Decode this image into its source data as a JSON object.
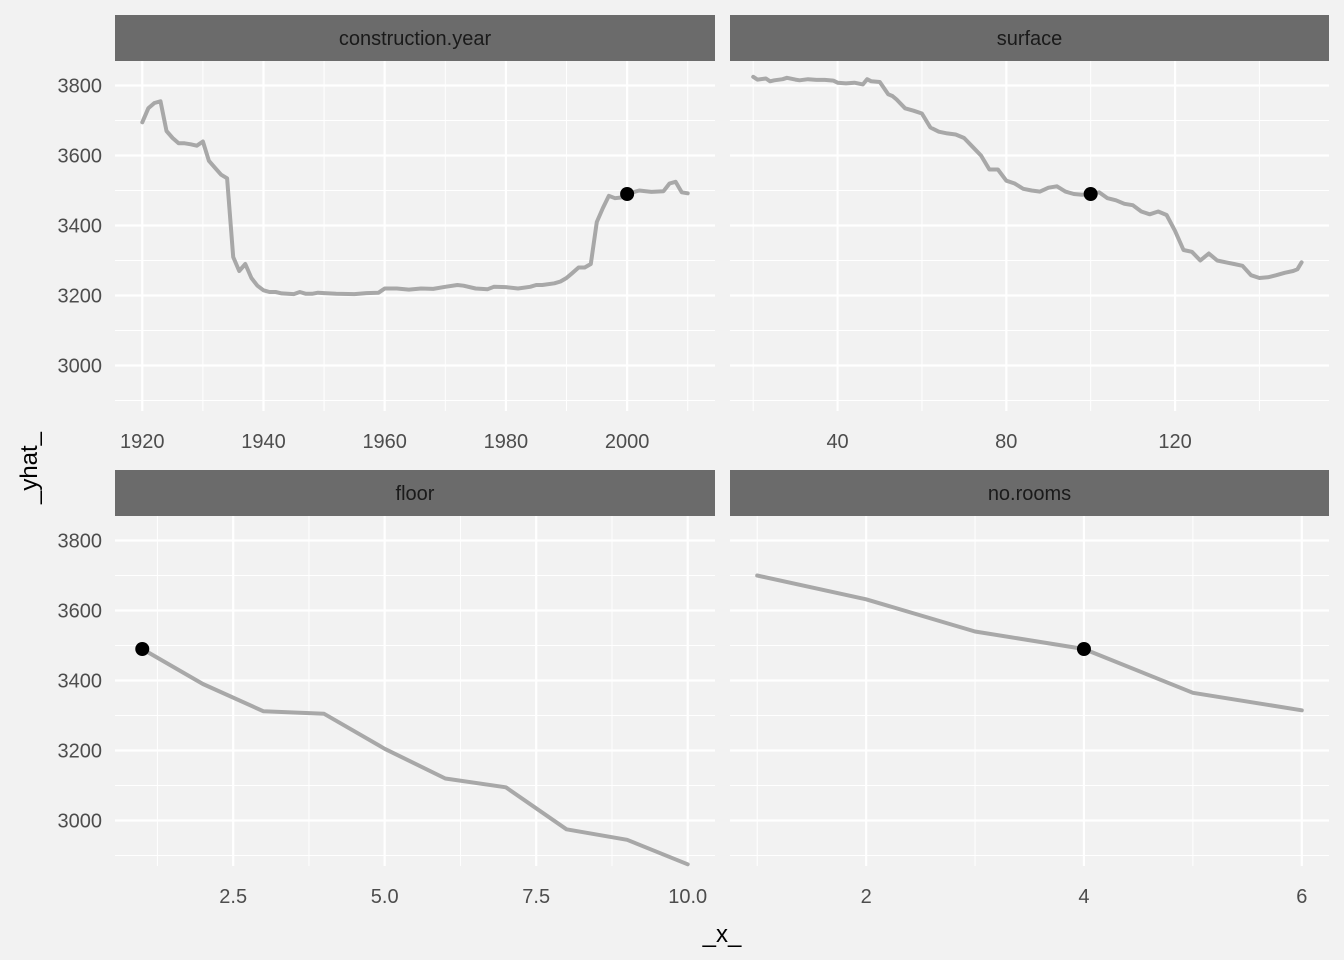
{
  "chart_data": {
    "type": "line",
    "xlabel": "_x_",
    "ylabel": "_yhat_",
    "ylim": [
      2870,
      3870
    ],
    "y_ticks": [
      3000,
      3200,
      3400,
      3600,
      3800
    ],
    "y_tick_labels": [
      "3000",
      "3200",
      "3400",
      "3600",
      "3800"
    ],
    "grid": true,
    "line_color": "#a8a8a8",
    "point_color": "#000000",
    "strip_color": "#6b6b6b",
    "facets": [
      {
        "title": "construction.year",
        "xlim": [
          1915.5,
          2014.5
        ],
        "x_ticks": [
          1920,
          1940,
          1960,
          1980,
          2000
        ],
        "x_tick_labels": [
          "1920",
          "1940",
          "1960",
          "1980",
          "2000"
        ],
        "x": [
          1920,
          1921,
          1922,
          1923,
          1924,
          1925,
          1926,
          1927,
          1928,
          1929,
          1930,
          1931,
          1932,
          1933,
          1934,
          1935,
          1936,
          1937,
          1938,
          1939,
          1940,
          1941,
          1942,
          1943,
          1944,
          1945,
          1946,
          1947,
          1948,
          1949,
          1950,
          1952,
          1955,
          1957,
          1959,
          1960,
          1962,
          1964,
          1966,
          1968,
          1970,
          1972,
          1973,
          1975,
          1977,
          1978,
          1980,
          1982,
          1984,
          1985,
          1986,
          1988,
          1989,
          1990,
          1991,
          1992,
          1993,
          1994,
          1995,
          1996,
          1997,
          1998,
          1999,
          2000,
          2002,
          2004,
          2006,
          2007,
          2008,
          2009,
          2010
        ],
        "y": [
          3695,
          3735,
          3750,
          3755,
          3670,
          3650,
          3635,
          3635,
          3632,
          3628,
          3640,
          3585,
          3565,
          3545,
          3535,
          3310,
          3270,
          3290,
          3250,
          3228,
          3215,
          3210,
          3210,
          3206,
          3205,
          3204,
          3210,
          3205,
          3205,
          3208,
          3207,
          3205,
          3204,
          3207,
          3208,
          3220,
          3220,
          3217,
          3220,
          3219,
          3225,
          3230,
          3228,
          3220,
          3218,
          3225,
          3224,
          3220,
          3225,
          3230,
          3230,
          3235,
          3240,
          3250,
          3265,
          3280,
          3280,
          3290,
          3410,
          3450,
          3485,
          3478,
          3480,
          3490,
          3500,
          3496,
          3498,
          3520,
          3525,
          3495,
          3492
        ],
        "highlight": {
          "x": 2000,
          "y": 3490
        }
      },
      {
        "title": "surface",
        "xlim": [
          14.5,
          156.5
        ],
        "x_ticks": [
          40,
          80,
          120
        ],
        "x_tick_labels": [
          "40",
          "80",
          "120"
        ],
        "x": [
          20,
          21,
          23,
          24,
          25,
          27,
          28,
          30,
          31,
          33,
          35,
          37,
          39,
          40,
          42,
          44,
          46,
          47,
          48,
          50,
          52,
          53,
          54,
          56,
          58,
          60,
          62,
          64,
          66,
          68,
          70,
          72,
          74,
          76,
          78,
          80,
          82,
          84,
          86,
          88,
          90,
          92,
          94,
          96,
          98,
          100,
          102,
          104,
          106,
          108,
          110,
          112,
          114,
          116,
          118,
          120,
          122,
          124,
          126,
          128,
          130,
          132,
          134,
          136,
          138,
          140,
          142,
          144,
          146,
          148,
          149,
          150
        ],
        "y": [
          3825,
          3817,
          3820,
          3812,
          3815,
          3818,
          3822,
          3817,
          3815,
          3818,
          3816,
          3816,
          3814,
          3808,
          3806,
          3808,
          3803,
          3818,
          3812,
          3810,
          3775,
          3770,
          3760,
          3735,
          3728,
          3720,
          3680,
          3668,
          3663,
          3660,
          3650,
          3625,
          3600,
          3560,
          3560,
          3528,
          3520,
          3505,
          3500,
          3497,
          3508,
          3512,
          3497,
          3490,
          3488,
          3490,
          3495,
          3478,
          3472,
          3462,
          3458,
          3440,
          3432,
          3440,
          3430,
          3385,
          3330,
          3325,
          3300,
          3320,
          3300,
          3295,
          3290,
          3285,
          3258,
          3250,
          3252,
          3258,
          3265,
          3270,
          3275,
          3295
        ],
        "highlight": {
          "x": 100,
          "y": 3490
        }
      },
      {
        "title": "floor",
        "xlim": [
          0.55,
          10.45
        ],
        "x_ticks": [
          2.5,
          5.0,
          7.5,
          10.0
        ],
        "x_tick_labels": [
          "2.5",
          "5.0",
          "7.5",
          "10.0"
        ],
        "x": [
          1,
          2,
          3,
          4,
          5,
          6,
          7,
          8,
          9,
          10
        ],
        "y": [
          3490,
          3390,
          3312,
          3305,
          3205,
          3120,
          3095,
          2975,
          2945,
          2875
        ],
        "highlight": {
          "x": 1,
          "y": 3490
        }
      },
      {
        "title": "no.rooms",
        "xlim": [
          0.75,
          6.25
        ],
        "x_ticks": [
          2,
          4,
          6
        ],
        "x_tick_labels": [
          "2",
          "4",
          "6"
        ],
        "x": [
          1,
          2,
          3,
          4,
          5,
          6
        ],
        "y": [
          3700,
          3632,
          3540,
          3490,
          3365,
          3315
        ],
        "highlight": {
          "x": 4,
          "y": 3490
        }
      }
    ]
  }
}
